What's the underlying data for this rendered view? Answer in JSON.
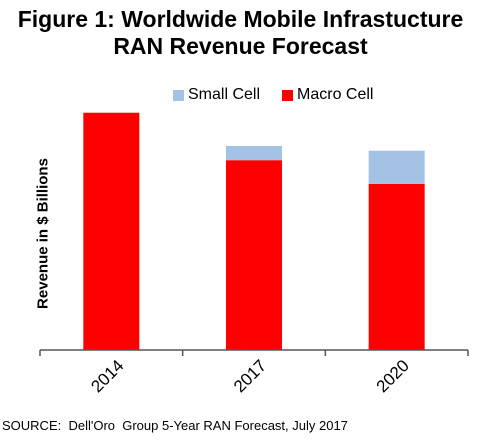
{
  "chart_data": {
    "type": "bar",
    "stacked": true,
    "title_line1": "Figure 1: Worldwide Mobile Infrastucture",
    "title_line2": "RAN Revenue Forecast",
    "ylabel": "Revenue in $ Billions",
    "categories": [
      "2014",
      "2017",
      "2020"
    ],
    "series": [
      {
        "name": "Macro Cell",
        "color": "#ff0000",
        "values": [
          10.0,
          8.0,
          7.0
        ]
      },
      {
        "name": "Small Cell",
        "color": "#a4c2e4",
        "values": [
          0,
          0.6,
          1.4
        ]
      }
    ],
    "ylim": [
      0,
      11
    ],
    "legend_position": "top",
    "grid": false
  },
  "legend": {
    "small": "Small Cell",
    "macro": "Macro Cell"
  },
  "source": "SOURCE:  Dell'Oro  Group 5-Year RAN Forecast, July 2017"
}
